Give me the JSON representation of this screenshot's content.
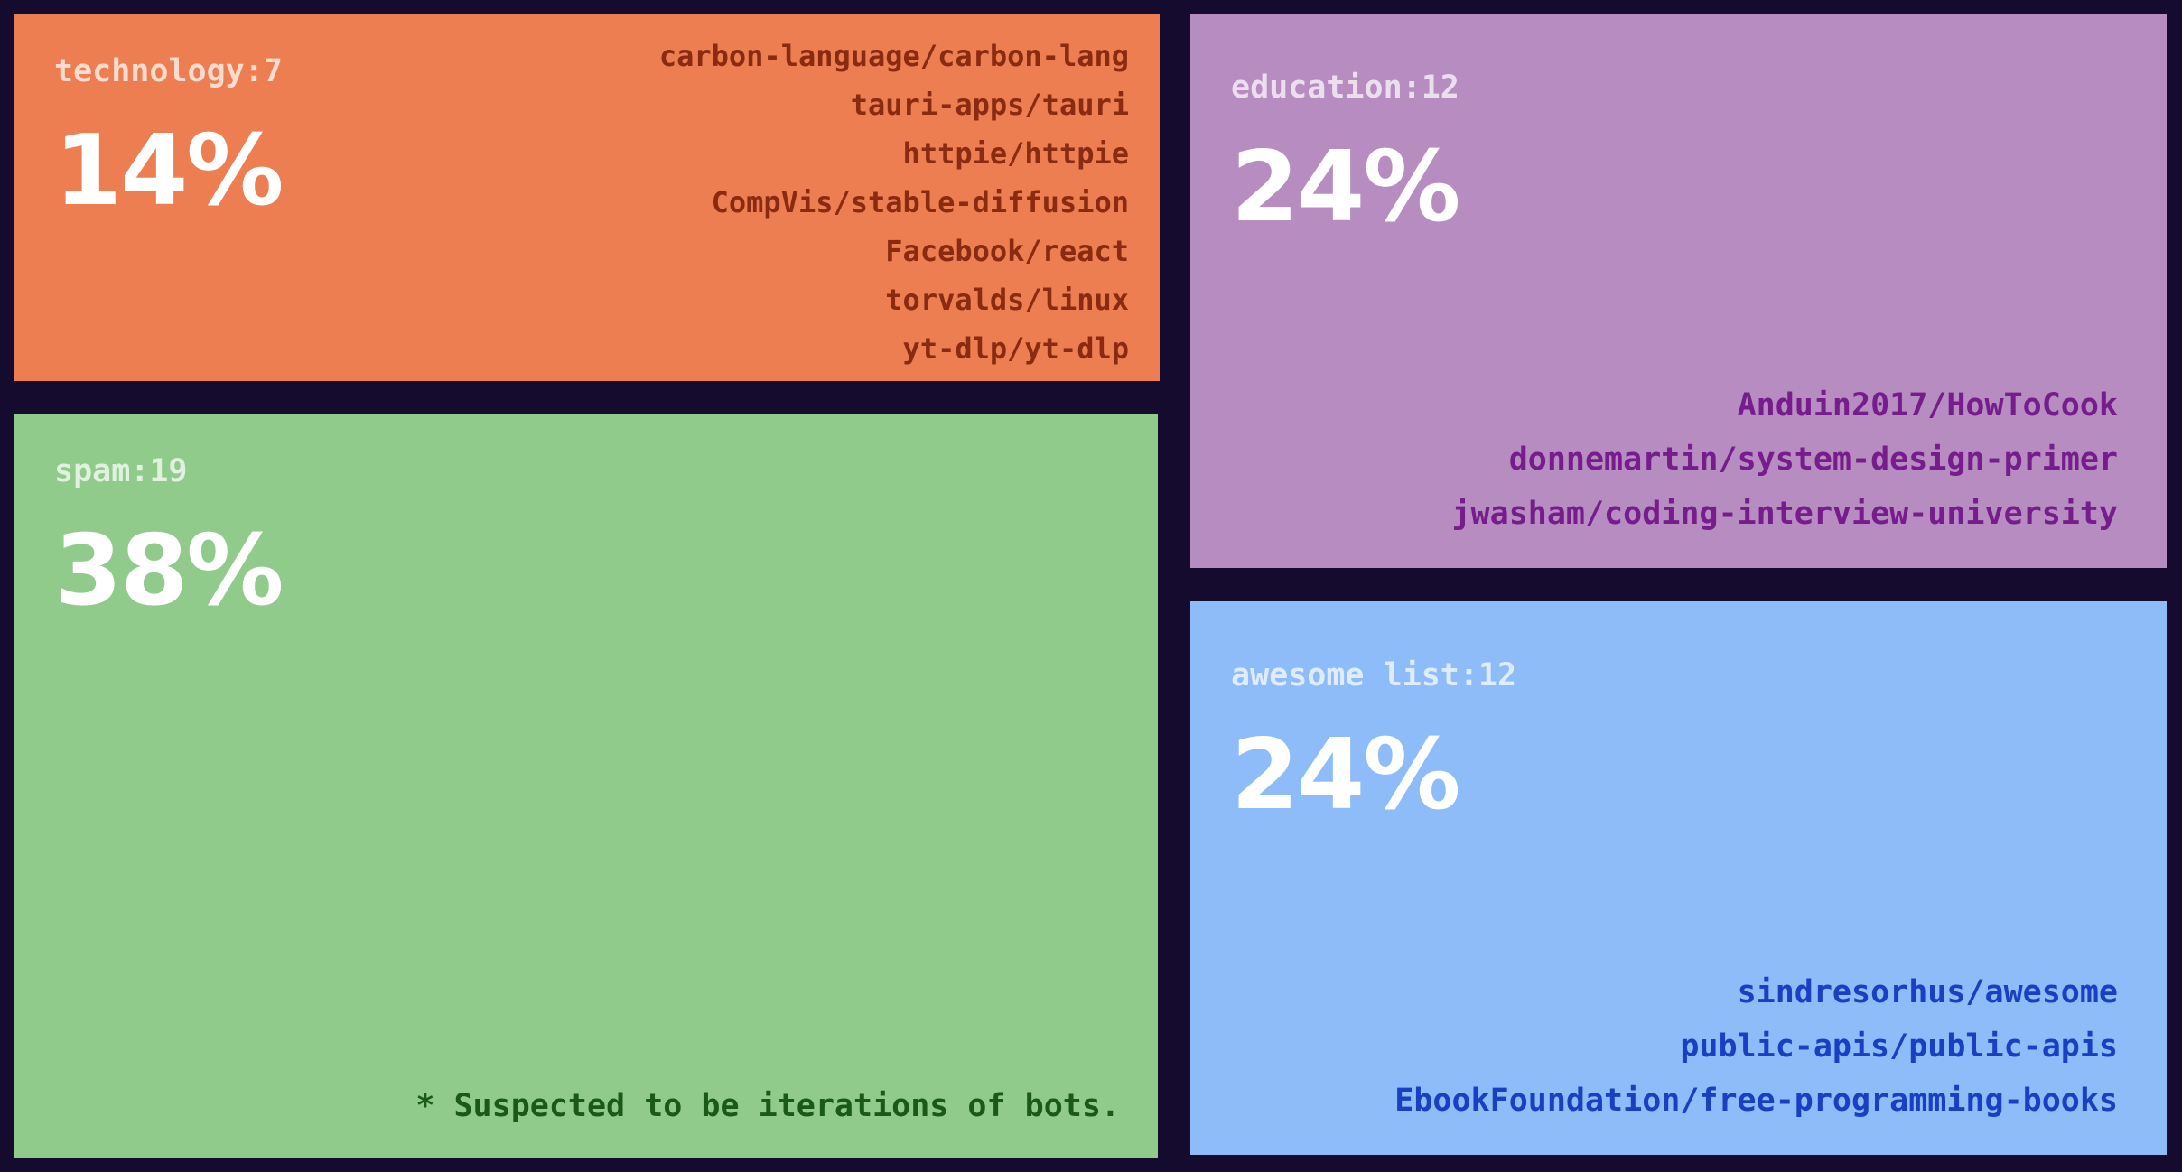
{
  "cells": [
    {
      "label": "technology:7",
      "percent": "14%",
      "items": [
        "carbon-language/carbon-lang",
        "tauri-apps/tauri",
        "httpie/httpie",
        "CompVis/stable-diffusion",
        "Facebook/react",
        "torvalds/linux",
        "yt-dlp/yt-dlp"
      ]
    },
    {
      "label": "spam:19",
      "percent": "38%",
      "items": [],
      "note": "* Suspected to be iterations of bots."
    },
    {
      "label": "education:12",
      "percent": "24%",
      "items": [
        "Anduin2017/HowToCook",
        "donnemartin/system-design-primer",
        "jwasham/coding-interview-university"
      ]
    },
    {
      "label": "awesome list:12",
      "percent": "24%",
      "items": [
        "sindresorhus/awesome",
        "public-apis/public-apis",
        "EbookFoundation/free-programming-books"
      ]
    }
  ]
}
